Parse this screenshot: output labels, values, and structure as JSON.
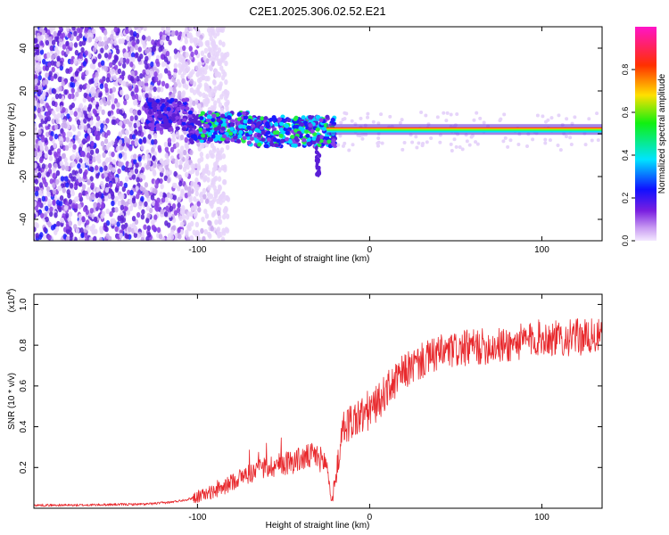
{
  "title": "C2E1.2025.306.02.52.E21",
  "colors": {
    "snr_line": "#e8282c",
    "dots_dark": "#5a1fd6",
    "dots_light": "#c9a8ee",
    "band": [
      "#ff2a00",
      "#ffd000",
      "#3cff3c",
      "#00e0ff"
    ]
  },
  "chart_data": [
    {
      "type": "heatmap",
      "title": "C2E1.2025.306.02.52.E21",
      "xlabel": "Height of straight line (km)",
      "ylabel": "Frequency (Hz)",
      "xlim": [
        -195,
        135
      ],
      "ylim": [
        -50,
        50
      ],
      "x_ticks": [
        -100,
        0,
        100
      ],
      "y_ticks": [
        -40,
        -20,
        0,
        20,
        40
      ],
      "colorbar": {
        "label": "Normalized spectral amplitude",
        "range": [
          0,
          1
        ],
        "ticks": [
          0.0,
          0.2,
          0.4,
          0.6,
          0.8
        ]
      },
      "features": {
        "noise_region_x": [
          -195,
          -100
        ],
        "scattered_region_x": [
          -130,
          -20
        ],
        "carrier_start_x": -25,
        "carrier_frequency": 2,
        "carrier_x_end": 135,
        "spur_x": -30,
        "spur_frequency_min": -20
      }
    },
    {
      "type": "line",
      "xlabel": "Height of straight line (km)",
      "ylabel": "SNR (10 * v/v)",
      "y_scale_label": "(x10",
      "y_scale_exp": "4",
      "y_scale_close": ")",
      "xlim": [
        -195,
        135
      ],
      "ylim": [
        0,
        1.05
      ],
      "x_ticks": [
        -100,
        0,
        100
      ],
      "y_ticks": [
        0.2,
        0.4,
        0.6,
        0.8,
        1.0
      ],
      "series": [
        {
          "name": "SNR",
          "x": [
            -195,
            -170,
            -150,
            -130,
            -115,
            -105,
            -95,
            -85,
            -78,
            -70,
            -60,
            -50,
            -40,
            -32,
            -25,
            -22,
            -18,
            -15,
            -10,
            -5,
            0,
            5,
            10,
            15,
            20,
            30,
            40,
            60,
            80,
            90,
            100,
            110,
            120,
            135
          ],
          "values": [
            0.015,
            0.015,
            0.018,
            0.02,
            0.03,
            0.045,
            0.07,
            0.1,
            0.14,
            0.17,
            0.2,
            0.22,
            0.24,
            0.26,
            0.22,
            0.03,
            0.25,
            0.4,
            0.43,
            0.45,
            0.48,
            0.52,
            0.58,
            0.62,
            0.67,
            0.72,
            0.76,
            0.79,
            0.8,
            0.82,
            0.84,
            0.83,
            0.84,
            0.84
          ]
        }
      ]
    }
  ]
}
